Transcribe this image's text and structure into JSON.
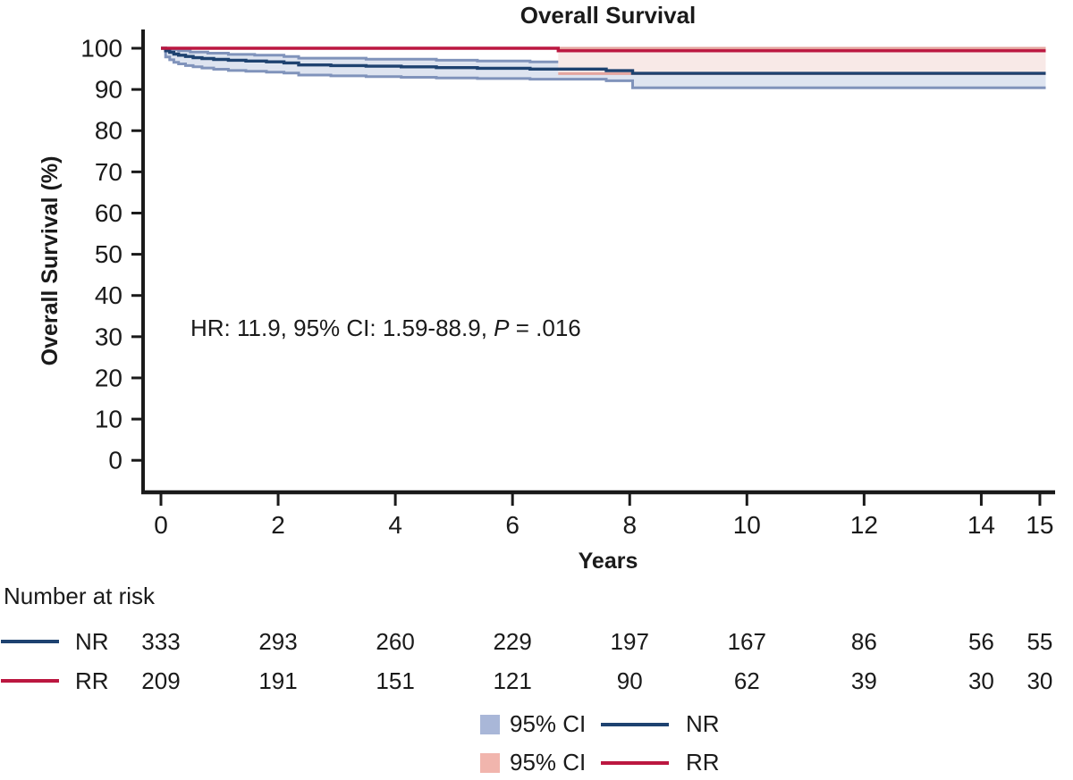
{
  "title": "Overall Survival",
  "colors": {
    "nr_line": "#1e4270",
    "rr_line": "#bb1740",
    "nr_ci_fill": "#dee4f0",
    "nr_ci_edge": "#8093bb",
    "rr_ci_fill": "#f8e9e7",
    "rr_ci_edge": "#e4a59f",
    "nr_ci_swatch": "#a9b7d8",
    "rr_ci_swatch": "#f1b5ad",
    "axis_text": "#1a1a1a"
  },
  "chart_data": {
    "type": "line",
    "subtype": "kaplan-meier-step",
    "title": "Overall Survival",
    "xlabel": "Years",
    "ylabel": "Overall Survival (%)",
    "xlim": [
      0,
      15
    ],
    "ylim": [
      0,
      100
    ],
    "xticks": [
      0,
      2,
      4,
      6,
      8,
      10,
      12,
      14,
      15
    ],
    "yticks": [
      100,
      90,
      80,
      70,
      60,
      50,
      40,
      30,
      20,
      10,
      0
    ],
    "grid": false,
    "legend_position": "bottom-center",
    "annotation": {
      "before": "HR: 11.9, 95% CI: 1.59-88.9, ",
      "p_symbol": "P",
      "after": " = .016"
    },
    "series": [
      {
        "name": "NR",
        "color": "#1e4270",
        "points": [
          [
            0,
            100
          ],
          [
            0.08,
            99.4
          ],
          [
            0.15,
            99.0
          ],
          [
            0.22,
            98.6
          ],
          [
            0.3,
            98.3
          ],
          [
            0.42,
            98.0
          ],
          [
            0.55,
            97.7
          ],
          [
            0.7,
            97.5
          ],
          [
            0.9,
            97.3
          ],
          [
            1.15,
            97.1
          ],
          [
            1.45,
            96.9
          ],
          [
            1.8,
            96.7
          ],
          [
            2.1,
            96.45
          ],
          [
            2.35,
            95.95
          ],
          [
            2.9,
            95.8
          ],
          [
            3.5,
            95.65
          ],
          [
            4.1,
            95.5
          ],
          [
            4.7,
            95.3
          ],
          [
            5.4,
            95.15
          ],
          [
            6.3,
            94.95
          ],
          [
            7.6,
            94.55
          ],
          [
            8.05,
            93.9
          ],
          [
            15.1,
            93.9
          ]
        ]
      },
      {
        "name": "RR",
        "color": "#bb1740",
        "points": [
          [
            0,
            100
          ],
          [
            6.78,
            99.4
          ],
          [
            15.1,
            99.4
          ]
        ]
      }
    ],
    "bands": [
      {
        "name": "NR 95% CI",
        "fill": "#dee4f0",
        "edge": "#8093bb",
        "upper": [
          [
            0,
            100
          ],
          [
            0.15,
            99.7
          ],
          [
            0.3,
            99.4
          ],
          [
            0.5,
            99.1
          ],
          [
            0.8,
            98.8
          ],
          [
            1.15,
            98.5
          ],
          [
            1.6,
            98.3
          ],
          [
            2.1,
            98.0
          ],
          [
            2.35,
            97.6
          ],
          [
            3.5,
            97.35
          ],
          [
            4.7,
            97.1
          ],
          [
            5.4,
            96.9
          ],
          [
            6.3,
            96.7
          ],
          [
            7.6,
            96.4
          ],
          [
            8.05,
            96.2
          ],
          [
            15.1,
            96.2
          ]
        ],
        "lower": [
          [
            0,
            100
          ],
          [
            0.08,
            97.9
          ],
          [
            0.15,
            97.2
          ],
          [
            0.22,
            96.6
          ],
          [
            0.3,
            96.2
          ],
          [
            0.42,
            95.8
          ],
          [
            0.55,
            95.5
          ],
          [
            0.7,
            95.2
          ],
          [
            0.9,
            94.9
          ],
          [
            1.15,
            94.6
          ],
          [
            1.45,
            94.4
          ],
          [
            1.8,
            94.2
          ],
          [
            2.1,
            94.0
          ],
          [
            2.35,
            93.5
          ],
          [
            2.9,
            93.3
          ],
          [
            3.5,
            93.1
          ],
          [
            4.1,
            92.95
          ],
          [
            4.7,
            92.8
          ],
          [
            5.4,
            92.65
          ],
          [
            6.3,
            92.5
          ],
          [
            7.6,
            92.1
          ],
          [
            8.05,
            90.4
          ],
          [
            15.1,
            90.4
          ]
        ]
      },
      {
        "name": "RR 95% CI",
        "fill": "#f8e9e7",
        "edge": "#e4a59f",
        "upper": [
          [
            6.78,
            100
          ],
          [
            15.1,
            100
          ]
        ],
        "lower": [
          [
            6.78,
            93.85
          ],
          [
            15.1,
            93.85
          ]
        ]
      }
    ]
  },
  "risk_table": {
    "heading": "Number at risk",
    "time_points": [
      0,
      2,
      4,
      6,
      8,
      10,
      12,
      14,
      15
    ],
    "rows": [
      {
        "label": "NR",
        "counts": [
          333,
          293,
          260,
          229,
          197,
          167,
          86,
          56,
          55
        ]
      },
      {
        "label": "RR",
        "counts": [
          209,
          191,
          151,
          121,
          90,
          62,
          39,
          30,
          30
        ]
      }
    ]
  },
  "legend": {
    "rows": [
      {
        "ci_label": "95% CI",
        "series_label": "NR"
      },
      {
        "ci_label": "95% CI",
        "series_label": "RR"
      }
    ]
  }
}
